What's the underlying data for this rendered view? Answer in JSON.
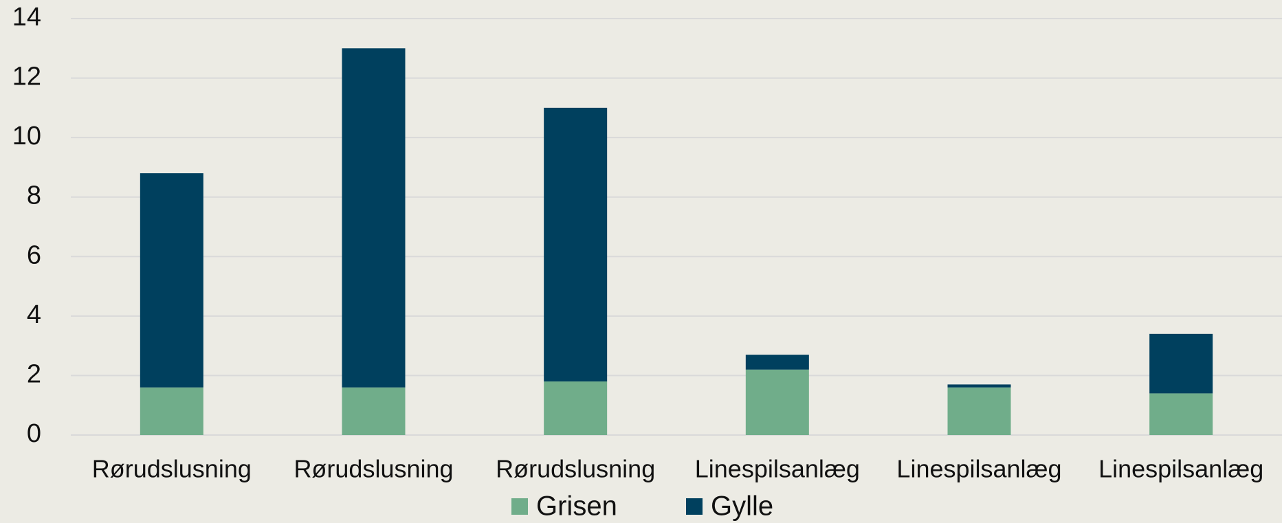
{
  "chart_data": {
    "type": "stacked_bar",
    "categories": [
      "Rørudslusning",
      "Rørudslusning",
      "Rørudslusning",
      "Linespilsanlæg",
      "Linespilsanlæg",
      "Linespilsanlæg"
    ],
    "series": [
      {
        "name": "Grisen",
        "color": "#70ad8a",
        "values": [
          1.6,
          1.6,
          1.8,
          2.2,
          1.6,
          1.4
        ]
      },
      {
        "name": "Gylle",
        "color": "#00405e",
        "values": [
          7.2,
          11.4,
          9.2,
          0.5,
          0.1,
          2.0
        ]
      }
    ],
    "ylim": [
      0,
      14
    ],
    "yticks": [
      0,
      2,
      4,
      6,
      8,
      10,
      12,
      14
    ],
    "grid": true,
    "legend": "bottom"
  }
}
